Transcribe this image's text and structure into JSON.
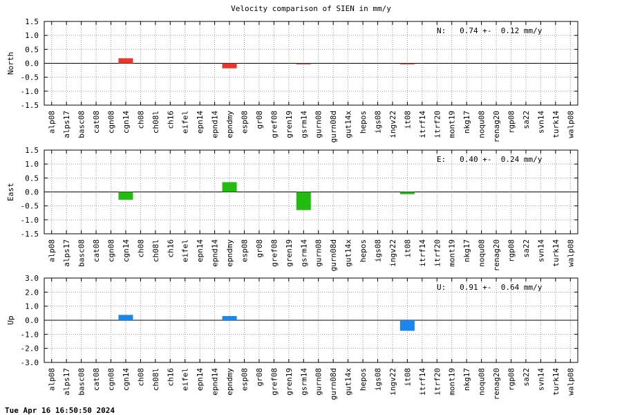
{
  "chart_data": [
    {
      "type": "bar",
      "title": "Velocity comparison of SIEN in mm/y",
      "ylabel": "North",
      "ylim": [
        -1.5,
        1.5
      ],
      "yticks": [
        1.5,
        1.0,
        0.5,
        0.0,
        -0.5,
        -1.0,
        -1.5
      ],
      "ytick_labels": [
        "1.5",
        "1.0",
        "0.5",
        "0.0",
        "-0.5",
        "-1.0",
        "-1.5"
      ],
      "grid": true,
      "categories": [
        "alp08",
        "alps17",
        "basc08",
        "cat08",
        "cgn08",
        "cgn14",
        "ch08",
        "ch08l",
        "ch16",
        "eifel",
        "epn14",
        "epnd14",
        "epndmy",
        "esp08",
        "gr08",
        "gref08",
        "gren19",
        "gsrm14",
        "gurn08",
        "gurn08d",
        "gut14x",
        "hepos",
        "igs08",
        "ingv22",
        "it08",
        "itrf14",
        "itrf20",
        "mont19",
        "nkg17",
        "noqu08",
        "renag20",
        "rgp08",
        "sa22",
        "svn14",
        "turk14",
        "walp08"
      ],
      "values": [
        0,
        0,
        0,
        0,
        0,
        0.18,
        0,
        0,
        0,
        0,
        0,
        0,
        -0.18,
        0,
        0,
        0,
        0,
        -0.02,
        0,
        0,
        0,
        0,
        0,
        0,
        -0.02,
        0,
        0,
        0,
        0,
        0,
        0,
        0,
        0,
        0,
        0,
        0
      ],
      "color": "#e8382e",
      "annotation": "N:   0.74 +-  0.12 mm/y"
    },
    {
      "type": "bar",
      "ylabel": "East",
      "ylim": [
        -1.5,
        1.5
      ],
      "yticks": [
        1.5,
        1.0,
        0.5,
        0.0,
        -0.5,
        -1.0,
        -1.5
      ],
      "ytick_labels": [
        "1.5",
        "1.0",
        "0.5",
        "0.0",
        "-0.5",
        "-1.0",
        "-1.5"
      ],
      "grid": true,
      "categories": [
        "alp08",
        "alps17",
        "basc08",
        "cat08",
        "cgn08",
        "cgn14",
        "ch08",
        "ch08l",
        "ch16",
        "eifel",
        "epn14",
        "epnd14",
        "epndmy",
        "esp08",
        "gr08",
        "gref08",
        "gren19",
        "gsrm14",
        "gurn08",
        "gurn08d",
        "gut14x",
        "hepos",
        "igs08",
        "ingv22",
        "it08",
        "itrf14",
        "itrf20",
        "mont19",
        "nkg17",
        "noqu08",
        "renag20",
        "rgp08",
        "sa22",
        "svn14",
        "turk14",
        "walp08"
      ],
      "values": [
        0,
        0,
        0,
        0,
        0,
        -0.28,
        0,
        0,
        0,
        0,
        0,
        0,
        0.35,
        0,
        0,
        0,
        0,
        -0.65,
        0,
        0,
        0,
        0,
        0,
        0,
        -0.08,
        0,
        0,
        0,
        0,
        0,
        0,
        0,
        0,
        0,
        0,
        0
      ],
      "color": "#22bb10",
      "annotation": "E:   0.40 +-  0.24 mm/y"
    },
    {
      "type": "bar",
      "ylabel": "Up",
      "ylim": [
        -3.0,
        3.0
      ],
      "yticks": [
        3.0,
        2.0,
        1.0,
        0.0,
        -1.0,
        -2.0,
        -3.0
      ],
      "ytick_labels": [
        "3.0",
        "2.0",
        "1.0",
        "0.0",
        "-1.0",
        "-2.0",
        "-3.0"
      ],
      "grid": true,
      "categories": [
        "alp08",
        "alps17",
        "basc08",
        "cat08",
        "cgn08",
        "cgn14",
        "ch08",
        "ch08l",
        "ch16",
        "eifel",
        "epn14",
        "epnd14",
        "epndmy",
        "esp08",
        "gr08",
        "gref08",
        "gren19",
        "gsrm14",
        "gurn08",
        "gurn08d",
        "gut14x",
        "hepos",
        "igs08",
        "ingv22",
        "it08",
        "itrf14",
        "itrf20",
        "mont19",
        "nkg17",
        "noqu08",
        "renag20",
        "rgp08",
        "sa22",
        "svn14",
        "turk14",
        "walp08"
      ],
      "values": [
        0,
        0,
        0,
        0,
        0,
        0.38,
        0,
        0,
        0,
        0,
        0,
        0,
        0.3,
        0,
        0,
        0,
        0,
        0,
        0,
        0,
        0,
        0,
        0,
        0,
        -0.75,
        0,
        0,
        0,
        0,
        0,
        0,
        0,
        0,
        0,
        0,
        0
      ],
      "color": "#1a86f0",
      "annotation": "U:   0.91 +-  0.64 mm/y"
    }
  ],
  "footer": "Tue Apr 16 16:50:50 2024"
}
